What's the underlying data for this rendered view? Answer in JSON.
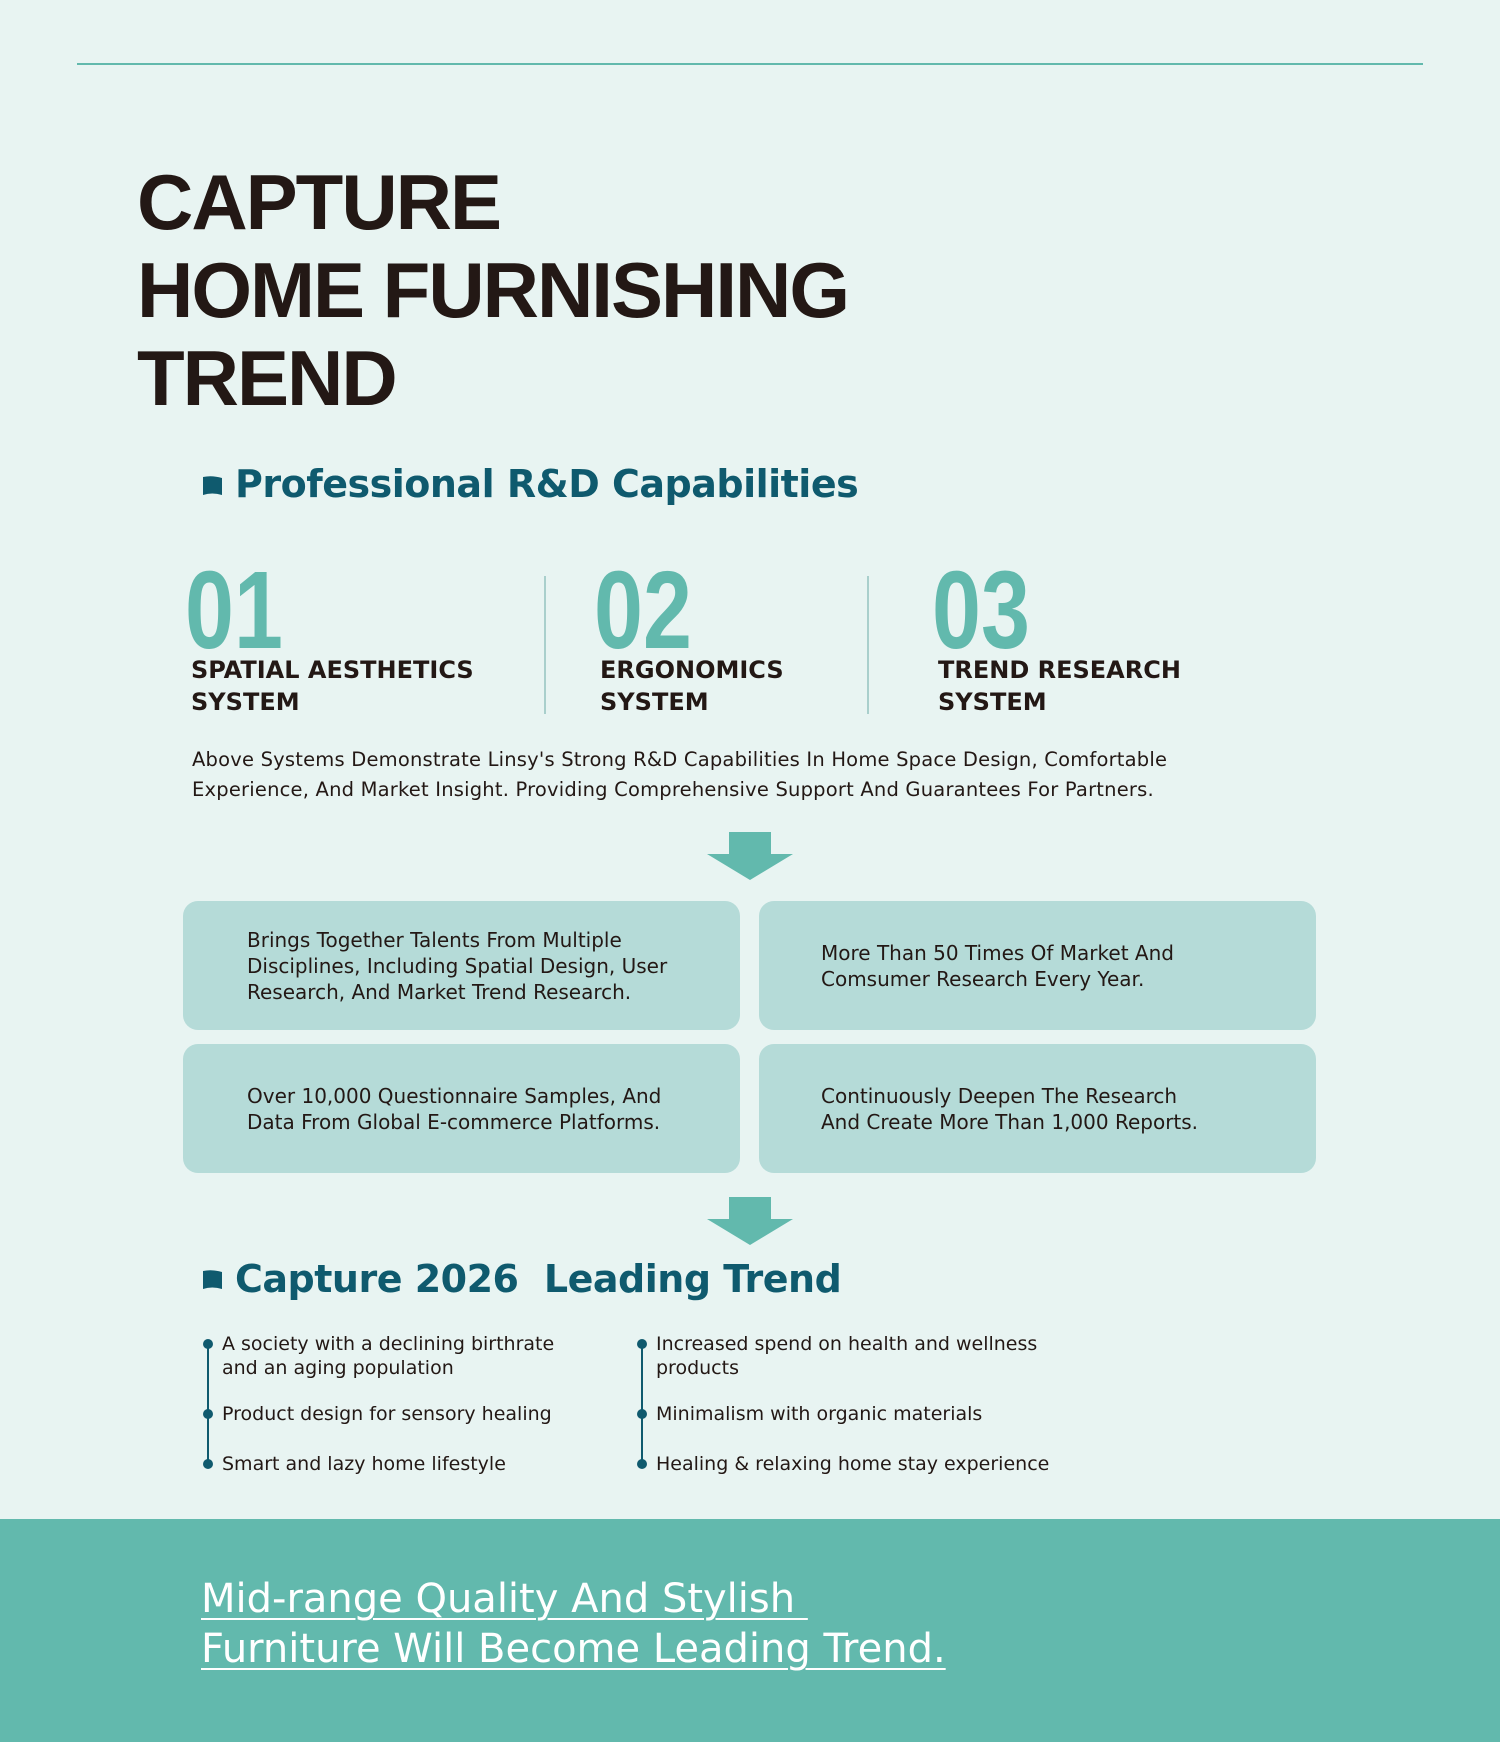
{
  "title": [
    "CAPTURE",
    "HOME FURNISHING",
    "TREND"
  ],
  "rd": {
    "heading": "Professional R&D Capabilities",
    "systems": [
      {
        "number": "01",
        "label": [
          "SPATIAL AESTHETICS",
          "SYSTEM"
        ]
      },
      {
        "number": "02",
        "label": [
          "ERGONOMICS",
          "SYSTEM"
        ]
      },
      {
        "number": "03",
        "label": [
          "TREND RESEARCH",
          "SYSTEM"
        ]
      }
    ],
    "description": [
      "Above Systems Demonstrate Linsy's Strong R&D Capabilities In Home Space Design, Comfortable",
      "Experience, And Market Insight. Providing Comprehensive Support And Guarantees For Partners."
    ]
  },
  "cards": [
    [
      "Brings Together Talents From Multiple",
      "Disciplines, Including Spatial Design, User",
      "Research, And Market Trend Research."
    ],
    [
      "More Than 50 Times Of Market And",
      "Comsumer Research Every Year."
    ],
    [
      "Over 10,000 Questionnaire Samples, And",
      "Data From Global E-commerce Platforms."
    ],
    [
      "Continuously Deepen The Research",
      "And Create More Than 1,000 Reports."
    ]
  ],
  "trend": {
    "heading": "Capture 2026  Leading Trend",
    "columns": [
      [
        [
          "A society with a declining birthrate",
          "and an aging population"
        ],
        [
          "Product design for sensory healing"
        ],
        [
          "Smart and lazy home lifestyle"
        ]
      ],
      [
        [
          "Increased spend on health and wellness",
          "products"
        ],
        [
          "Minimalism with organic materials"
        ],
        [
          "Healing & relaxing home stay experience"
        ]
      ]
    ]
  },
  "footer": [
    "Mid-range Quality And Stylish ",
    "Furniture Will Become Leading Trend."
  ]
}
